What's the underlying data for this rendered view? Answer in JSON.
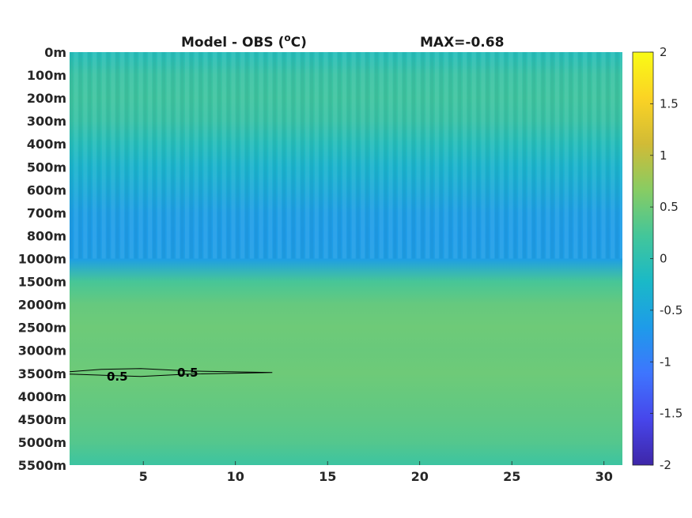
{
  "figure": {
    "title_main": "Model - OBS (",
    "title_unit_sup": "o",
    "title_unit_tail": "C)",
    "title_right": "MAX=-0.68"
  },
  "chart_data": {
    "type": "heatmap",
    "title": "Model - OBS (oC)",
    "annotation": "MAX=-0.68",
    "x": {
      "ticks": [
        5,
        10,
        15,
        20,
        25,
        30
      ],
      "tick_labels": [
        "5",
        "10",
        "15",
        "20",
        "25",
        "30"
      ],
      "range": [
        1,
        31
      ]
    },
    "y": {
      "depth_levels": [
        "0m",
        "100m",
        "200m",
        "300m",
        "400m",
        "500m",
        "600m",
        "700m",
        "800m",
        "1000m",
        "1500m",
        "2000m",
        "2500m",
        "3000m",
        "3500m",
        "4000m",
        "4500m",
        "5000m",
        "5500m"
      ],
      "reversed": true
    },
    "colorbar": {
      "range": [
        -2,
        2
      ],
      "ticks": [
        2,
        1.5,
        1,
        0.5,
        0,
        -0.5,
        -1,
        -1.5,
        -2
      ],
      "tick_labels": [
        "2",
        "1.5",
        "1",
        "0.5",
        "0",
        "-0.5",
        "-1",
        "-1.5",
        "-2"
      ],
      "colormap": "parula",
      "colors": [
        "#3e26a8",
        "#4746eb",
        "#3e75fe",
        "#1e9be9",
        "#1ab9c7",
        "#43c69a",
        "#88cc63",
        "#d1bb36",
        "#fbd324",
        "#f9fb15"
      ]
    },
    "depth_profile": [
      {
        "depth": "0m",
        "value": -0.1
      },
      {
        "depth": "100m",
        "value": 0.12
      },
      {
        "depth": "200m",
        "value": 0.17
      },
      {
        "depth": "300m",
        "value": 0.1
      },
      {
        "depth": "400m",
        "value": -0.1
      },
      {
        "depth": "500m",
        "value": -0.3
      },
      {
        "depth": "600m",
        "value": -0.45
      },
      {
        "depth": "700m",
        "value": -0.62
      },
      {
        "depth": "800m",
        "value": -0.65
      },
      {
        "depth": "1000m",
        "value": -0.62
      },
      {
        "depth": "1500m",
        "value": 0.25
      },
      {
        "depth": "2000m",
        "value": 0.45
      },
      {
        "depth": "2500m",
        "value": 0.5
      },
      {
        "depth": "3000m",
        "value": 0.47
      },
      {
        "depth": "3500m",
        "value": 0.5
      },
      {
        "depth": "4000m",
        "value": 0.45
      },
      {
        "depth": "4500m",
        "value": 0.4
      },
      {
        "depth": "5000m",
        "value": 0.33
      },
      {
        "depth": "5500m",
        "value": 0.15
      }
    ],
    "contours": [
      {
        "level": 0.5,
        "label": "0.5",
        "x_range": [
          1,
          12
        ],
        "depth": "3500m"
      }
    ],
    "contour_labels": [
      "0.5",
      "0.5"
    ],
    "grid": false
  }
}
